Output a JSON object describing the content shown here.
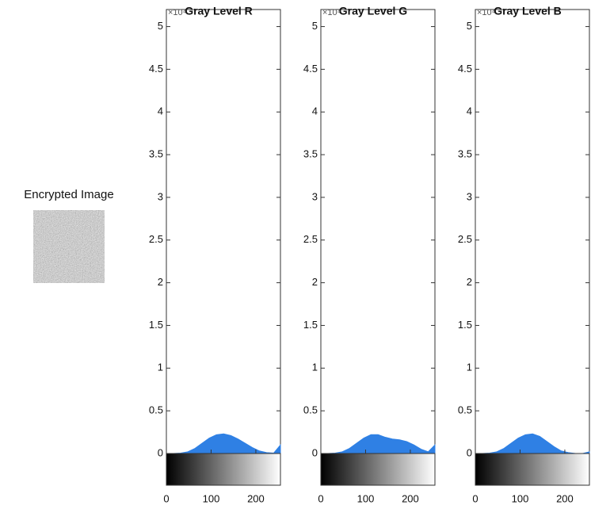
{
  "image_title": "Encrypted Image",
  "chart_data": [
    {
      "type": "area",
      "title": "Gray Level R",
      "exponent": "×10⁴",
      "color": "#2f80e4",
      "x": [
        0,
        16,
        32,
        48,
        64,
        80,
        96,
        112,
        128,
        144,
        160,
        176,
        192,
        208,
        224,
        240,
        255
      ],
      "values": [
        0,
        0,
        0.005,
        0.02,
        0.06,
        0.12,
        0.18,
        0.22,
        0.23,
        0.21,
        0.17,
        0.12,
        0.07,
        0.03,
        0.01,
        0.005,
        0.1
      ],
      "xlim": [
        0,
        255
      ],
      "xticks": [
        0,
        100,
        200
      ],
      "ylim": [
        0,
        5.2
      ],
      "yticks": [
        0,
        0.5,
        1,
        1.5,
        2,
        2.5,
        3,
        3.5,
        4,
        4.5,
        5
      ]
    },
    {
      "type": "area",
      "title": "Gray Level G",
      "exponent": "×10⁴",
      "color": "#2f80e4",
      "x": [
        0,
        16,
        32,
        48,
        64,
        80,
        96,
        112,
        128,
        144,
        160,
        176,
        192,
        208,
        224,
        240,
        255
      ],
      "values": [
        0,
        0,
        0.005,
        0.02,
        0.06,
        0.12,
        0.18,
        0.22,
        0.22,
        0.19,
        0.17,
        0.16,
        0.14,
        0.1,
        0.05,
        0.02,
        0.1
      ],
      "xlim": [
        0,
        255
      ],
      "xticks": [
        0,
        100,
        200
      ],
      "ylim": [
        0,
        5.2
      ],
      "yticks": [
        0,
        0.5,
        1,
        1.5,
        2,
        2.5,
        3,
        3.5,
        4,
        4.5,
        5
      ]
    },
    {
      "type": "area",
      "title": "Gray Level B",
      "exponent": "×10⁴",
      "color": "#2f80e4",
      "x": [
        0,
        16,
        32,
        48,
        64,
        80,
        96,
        112,
        128,
        144,
        160,
        176,
        192,
        208,
        224,
        240,
        255
      ],
      "values": [
        0,
        0,
        0.005,
        0.02,
        0.06,
        0.12,
        0.18,
        0.22,
        0.23,
        0.2,
        0.14,
        0.08,
        0.03,
        0.01,
        0,
        0,
        0.02
      ],
      "xlim": [
        0,
        255
      ],
      "xticks": [
        0,
        100,
        200
      ],
      "ylim": [
        0,
        5.2
      ],
      "yticks": [
        0,
        0.5,
        1,
        1.5,
        2,
        2.5,
        3,
        3.5,
        4,
        4.5,
        5
      ]
    }
  ]
}
